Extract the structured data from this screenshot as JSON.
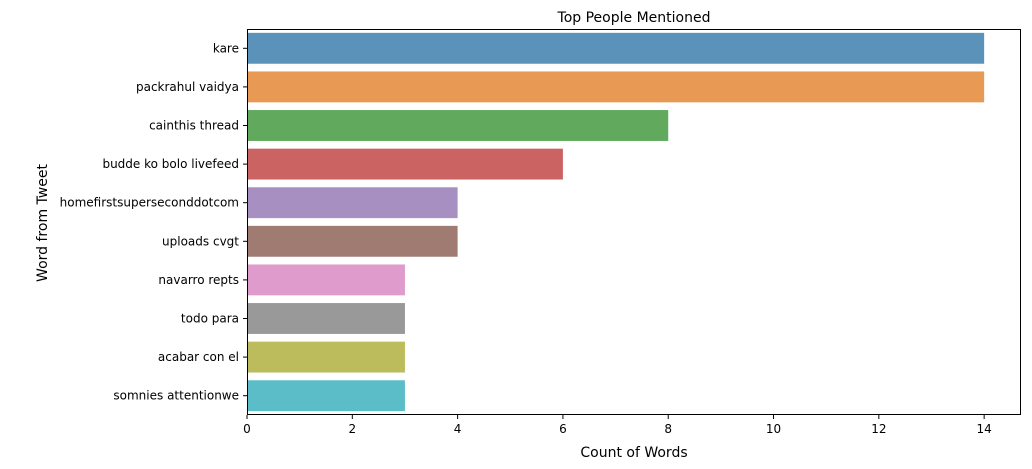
{
  "chart_data": {
    "type": "bar",
    "orientation": "horizontal",
    "title": "Top People Mentioned",
    "xlabel": "Count of Words",
    "ylabel": "Word from Tweet",
    "xlim": [
      0,
      14.7
    ],
    "xticks": [
      0,
      2,
      4,
      6,
      8,
      10,
      12,
      14
    ],
    "grid": false,
    "categories": [
      "kare",
      "packrahul vaidya",
      "cainthis thread",
      "budde ko bolo livefeed",
      "homefirstsuperseconddotcom",
      "uploads cvgt",
      "navarro repts",
      "todo para",
      "acabar con el",
      "somnies attentionwe"
    ],
    "values": [
      14,
      14,
      8,
      6,
      4,
      4,
      3,
      3,
      3,
      3
    ],
    "colors": [
      "#5b92b9",
      "#e89a55",
      "#60a95d",
      "#cb6363",
      "#a88fc2",
      "#9f7b72",
      "#de9bcc",
      "#999999",
      "#bcbc5d",
      "#5bbdc7"
    ]
  }
}
